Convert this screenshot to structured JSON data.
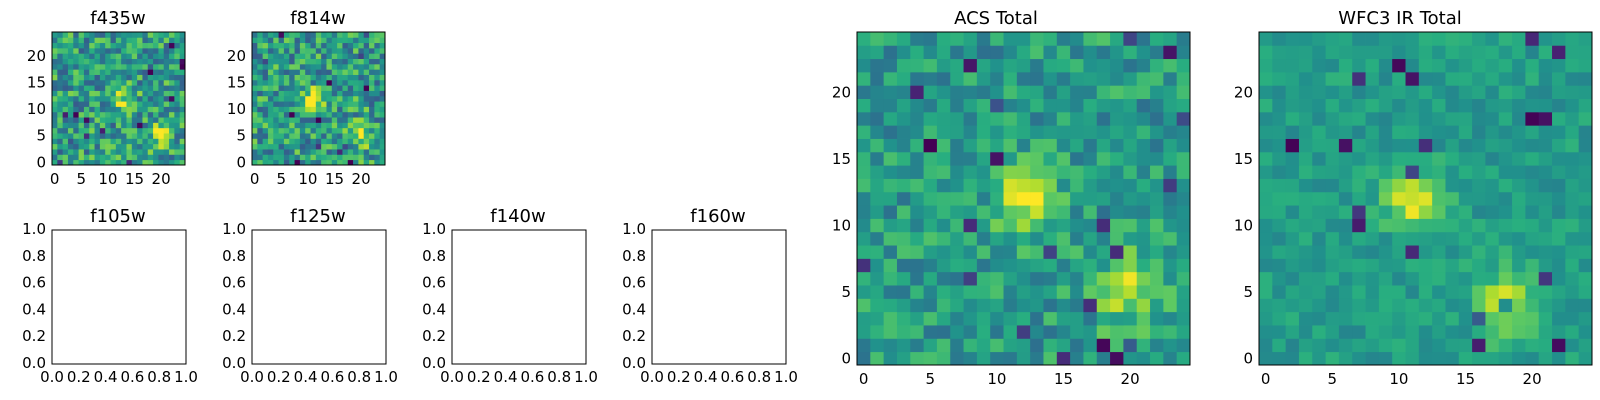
{
  "colormap": "viridis",
  "colors": {
    "background": "#ffffff",
    "axes": "#000000"
  },
  "chart_data": [
    {
      "type": "heatmap",
      "title": "f435w",
      "grid": false,
      "origin": "lower",
      "xlim": [
        -0.5,
        24.5
      ],
      "ylim": [
        -0.5,
        24.5
      ],
      "xticks": [
        "0",
        "5",
        "10",
        "15",
        "20"
      ],
      "yticks": [
        "0",
        "5",
        "10",
        "15",
        "20"
      ],
      "shape": [
        25,
        25
      ],
      "peak": {
        "x": 13,
        "y": 12
      },
      "secondary_peak": {
        "x": 20,
        "y": 5
      },
      "noise": "high"
    },
    {
      "type": "heatmap",
      "title": "f814w",
      "grid": false,
      "origin": "lower",
      "xlim": [
        -0.5,
        24.5
      ],
      "ylim": [
        -0.5,
        24.5
      ],
      "xticks": [
        "0",
        "5",
        "10",
        "15",
        "20"
      ],
      "yticks": [
        "0",
        "5",
        "10",
        "15",
        "20"
      ],
      "shape": [
        25,
        25
      ],
      "peak": {
        "x": 11,
        "y": 12
      },
      "secondary_peak": {
        "x": 20,
        "y": 5
      },
      "noise": "high"
    },
    {
      "type": "heatmap",
      "title": "f105w",
      "empty": true,
      "xlim": [
        0,
        1
      ],
      "ylim": [
        0,
        1
      ],
      "xticks": [
        "0.0",
        "0.2",
        "0.4",
        "0.6",
        "0.8",
        "1.0"
      ],
      "yticks": [
        "0.0",
        "0.2",
        "0.4",
        "0.6",
        "0.8",
        "1.0"
      ]
    },
    {
      "type": "heatmap",
      "title": "f125w",
      "empty": true,
      "xlim": [
        0,
        1
      ],
      "ylim": [
        0,
        1
      ],
      "xticks": [
        "0.0",
        "0.2",
        "0.4",
        "0.6",
        "0.8",
        "1.0"
      ],
      "yticks": [
        "0.0",
        "0.2",
        "0.4",
        "0.6",
        "0.8",
        "1.0"
      ]
    },
    {
      "type": "heatmap",
      "title": "f140w",
      "empty": true,
      "xlim": [
        0,
        1
      ],
      "ylim": [
        0,
        1
      ],
      "xticks": [
        "0.0",
        "0.2",
        "0.4",
        "0.6",
        "0.8",
        "1.0"
      ],
      "yticks": [
        "0.0",
        "0.2",
        "0.4",
        "0.6",
        "0.8",
        "1.0"
      ]
    },
    {
      "type": "heatmap",
      "title": "f160w",
      "empty": true,
      "xlim": [
        0,
        1
      ],
      "ylim": [
        0,
        1
      ],
      "xticks": [
        "0.0",
        "0.2",
        "0.4",
        "0.6",
        "0.8",
        "1.0"
      ],
      "yticks": [
        "0.0",
        "0.2",
        "0.4",
        "0.6",
        "0.8",
        "1.0"
      ]
    },
    {
      "type": "heatmap",
      "title": "ACS Total",
      "grid": false,
      "origin": "lower",
      "xlim": [
        -0.5,
        24.5
      ],
      "ylim": [
        -0.5,
        24.5
      ],
      "xticks": [
        "0",
        "5",
        "10",
        "15",
        "20"
      ],
      "yticks": [
        "0",
        "5",
        "10",
        "15",
        "20"
      ],
      "shape": [
        25,
        25
      ],
      "peak": {
        "x": 12,
        "y": 12
      },
      "secondary_peak": {
        "x": 20,
        "y": 5
      },
      "noise": "medium"
    },
    {
      "type": "heatmap",
      "title": "WFC3 IR Total",
      "grid": false,
      "origin": "lower",
      "xlim": [
        -0.5,
        24.5
      ],
      "ylim": [
        -0.5,
        24.5
      ],
      "xticks": [
        "0",
        "5",
        "10",
        "15",
        "20"
      ],
      "yticks": [
        "0",
        "5",
        "10",
        "15",
        "20"
      ],
      "shape": [
        25,
        25
      ],
      "peak": {
        "x": 11,
        "y": 12
      },
      "secondary_peak": {
        "x": 18,
        "y": 4
      },
      "noise": "low"
    }
  ]
}
